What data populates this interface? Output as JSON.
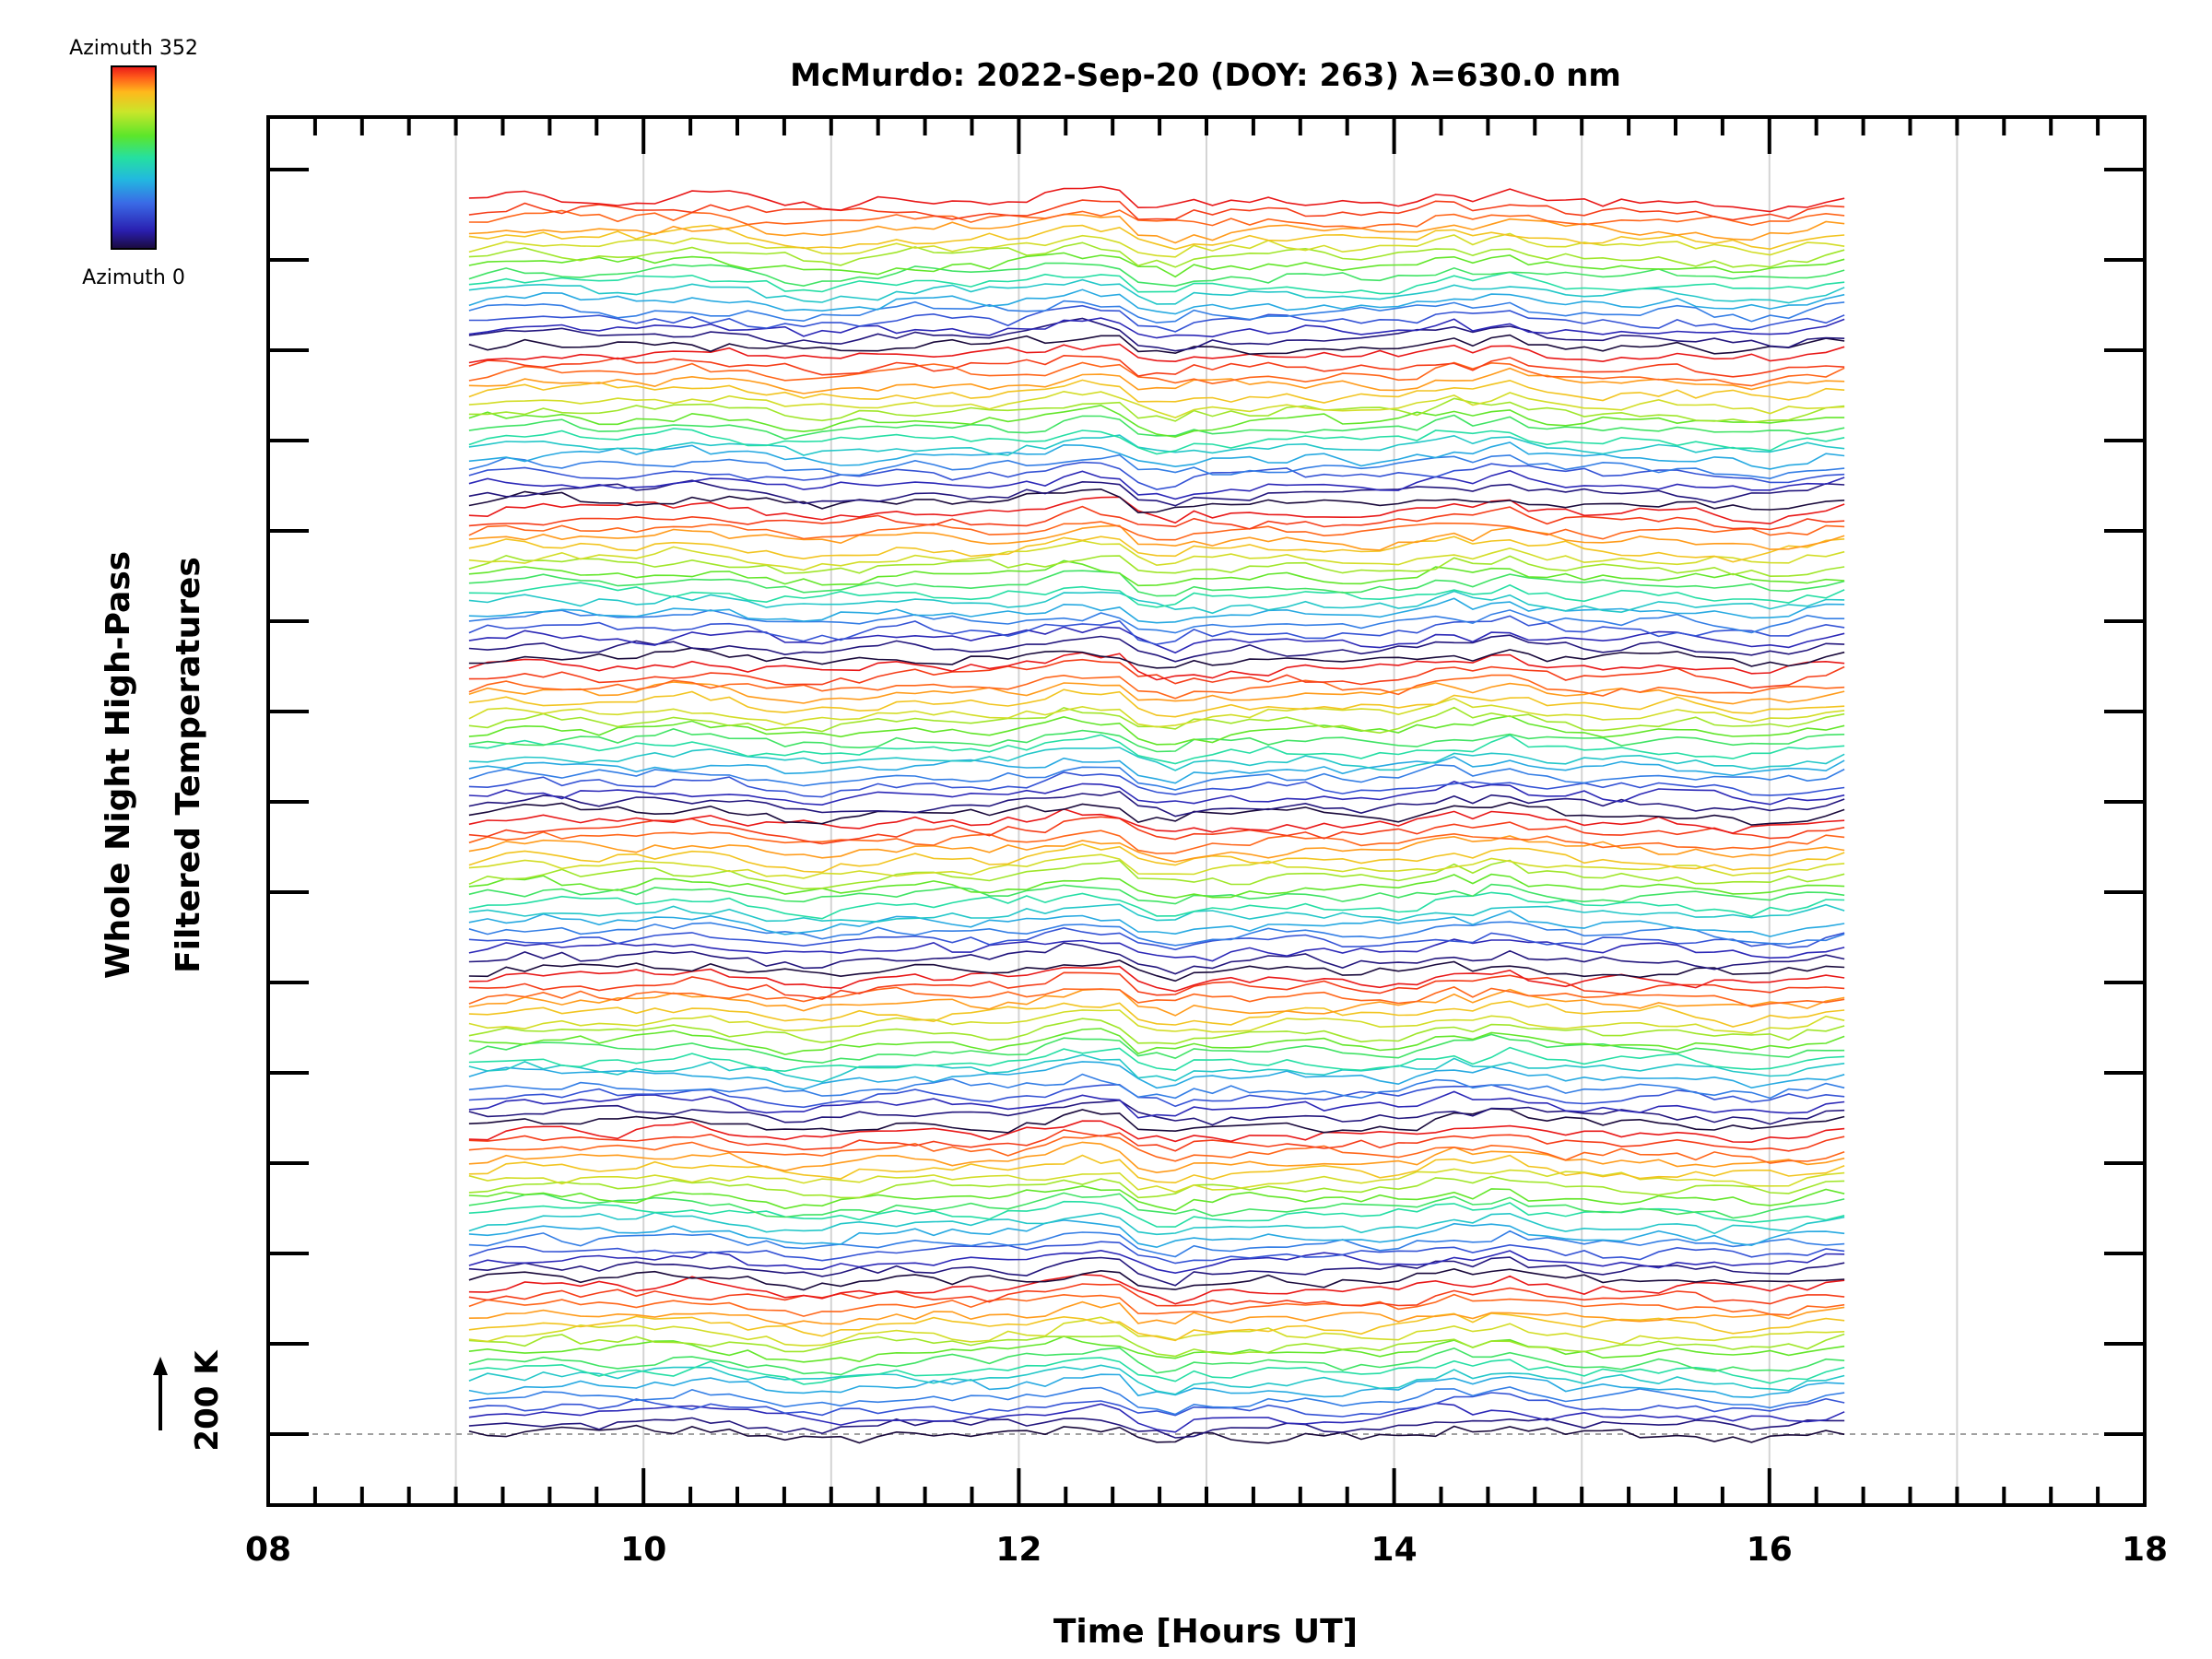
{
  "chart_data": {
    "type": "line",
    "title": "McMurdo: 2022-Sep-20 (DOY: 263) λ=630.0 nm",
    "xlabel": "Time [Hours UT]",
    "ylabel_line1": "Whole Night High-Pass",
    "ylabel_line2": "Filtered Temperatures",
    "x_tick_labels": [
      "08",
      "10",
      "12",
      "14",
      "16",
      "18"
    ],
    "x_ticks": [
      8,
      10,
      12,
      14,
      16,
      18
    ],
    "xlim": [
      8,
      18
    ],
    "x_gridlines": [
      9,
      10,
      11,
      12,
      13,
      14,
      15,
      16,
      17
    ],
    "reference_label": "200 K",
    "colorbar": {
      "top_label": "Azimuth 352",
      "bottom_label": "Azimuth 0",
      "colormap": "rainbow",
      "range": [
        0,
        352
      ]
    },
    "colors": {
      "cmap_stops": [
        "#1a0a3c",
        "#2a1fb0",
        "#3a6ae6",
        "#22b8e0",
        "#25e0a0",
        "#5ce62a",
        "#c9e62a",
        "#ffb81c",
        "#ff5a1a",
        "#e81818"
      ]
    },
    "series_time_range": [
      9.07,
      16.4
    ],
    "sample_count": 75,
    "trace_count": 136,
    "traces_per_group": 17,
    "group_count": 8
  }
}
